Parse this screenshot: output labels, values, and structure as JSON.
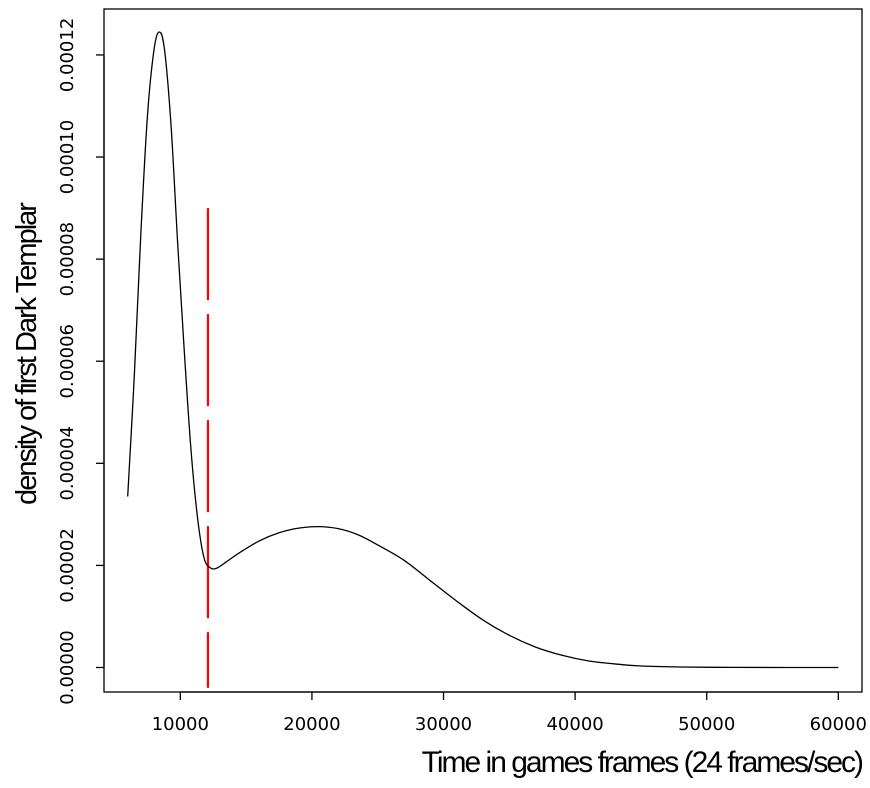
{
  "chart_data": {
    "type": "line",
    "title": "",
    "xlabel": "Time in games  frames (24 frames/sec)",
    "ylabel": "density of first Dark Templar",
    "xlim": [
      4200,
      61800
    ],
    "ylim": [
      -4.8e-06,
      0.000129
    ],
    "x_ticks": [
      10000,
      20000,
      30000,
      40000,
      50000,
      60000
    ],
    "x_tick_labels": [
      "10000",
      "20000",
      "30000",
      "40000",
      "50000",
      "60000"
    ],
    "y_ticks": [
      0,
      2e-05,
      4e-05,
      6e-05,
      8e-05,
      0.0001,
      0.00012
    ],
    "y_tick_labels": [
      "0.00000",
      "0.00002",
      "0.00004",
      "0.00006",
      "0.00008",
      "0.00010",
      "0.00012"
    ],
    "grid": false,
    "series": [
      {
        "color": "#000000",
        "points": [
          [
            6000,
            3.35e-05
          ],
          [
            6500,
            5.7e-05
          ],
          [
            7000,
            8.5e-05
          ],
          [
            7500,
            0.000108
          ],
          [
            8000,
            0.000121
          ],
          [
            8400,
            0.0001245
          ],
          [
            8800,
            0.000121
          ],
          [
            9300,
            0.000106
          ],
          [
            9800,
            8.3e-05
          ],
          [
            10300,
            6.2e-05
          ],
          [
            10800,
            4.3e-05
          ],
          [
            11300,
            2.95e-05
          ],
          [
            11800,
            2.15e-05
          ],
          [
            12300,
            1.95e-05
          ],
          [
            12800,
            1.95e-05
          ],
          [
            13500,
            2.07e-05
          ],
          [
            14500,
            2.25e-05
          ],
          [
            16000,
            2.48e-05
          ],
          [
            17500,
            2.64e-05
          ],
          [
            19000,
            2.73e-05
          ],
          [
            20500,
            2.76e-05
          ],
          [
            22000,
            2.72e-05
          ],
          [
            23500,
            2.6e-05
          ],
          [
            25000,
            2.4e-05
          ],
          [
            27000,
            2.1e-05
          ],
          [
            29000,
            1.7e-05
          ],
          [
            31000,
            1.3e-05
          ],
          [
            33000,
            9.3e-06
          ],
          [
            35000,
            6.3e-06
          ],
          [
            37000,
            4e-06
          ],
          [
            39000,
            2.4e-06
          ],
          [
            41000,
            1.3e-06
          ],
          [
            43000,
            7e-07
          ],
          [
            45000,
            3e-07
          ],
          [
            48000,
            1e-07
          ],
          [
            52000,
            2e-08
          ],
          [
            56000,
            0.0
          ],
          [
            60000,
            0.0
          ]
        ]
      }
    ],
    "reference_line": {
      "x": 12100,
      "y_range": [
        -4e-06,
        9e-05
      ],
      "color": "#ff0000",
      "style": "dashed"
    }
  }
}
